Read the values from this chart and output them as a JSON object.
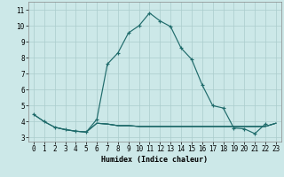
{
  "xlabel": "Humidex (Indice chaleur)",
  "xlim": [
    -0.5,
    23.5
  ],
  "ylim": [
    2.75,
    11.5
  ],
  "x_ticks": [
    0,
    1,
    2,
    3,
    4,
    5,
    6,
    7,
    8,
    9,
    10,
    11,
    12,
    13,
    14,
    15,
    16,
    17,
    18,
    19,
    20,
    21,
    22,
    23
  ],
  "y_ticks": [
    3,
    4,
    5,
    6,
    7,
    8,
    9,
    10,
    11
  ],
  "bg_color": "#cce8e8",
  "grid_color": "#aacccc",
  "line_color": "#1f6b6b",
  "curve1_x": [
    0,
    1,
    2,
    3,
    4,
    5,
    6,
    7,
    8,
    9,
    10,
    11,
    12,
    13,
    14,
    15,
    16,
    17,
    18,
    19,
    20,
    21,
    22
  ],
  "curve1_y": [
    4.45,
    4.0,
    3.65,
    3.5,
    3.4,
    3.35,
    4.15,
    7.6,
    8.3,
    9.55,
    10.0,
    10.8,
    10.3,
    9.95,
    8.6,
    7.9,
    6.3,
    5.0,
    4.85,
    3.6,
    3.55,
    3.25,
    3.85
  ],
  "curve2_x": [
    6,
    7,
    8,
    9,
    10,
    11,
    12,
    13,
    14,
    15,
    16,
    17,
    18,
    19,
    20,
    21,
    22,
    23
  ],
  "curve2_y": [
    3.9,
    3.85,
    3.75,
    3.75,
    3.7,
    3.7,
    3.7,
    3.7,
    3.7,
    3.7,
    3.7,
    3.7,
    3.7,
    3.7,
    3.7,
    3.7,
    3.7,
    3.9
  ],
  "curve3_x": [
    0,
    1,
    2,
    3,
    4,
    5,
    6,
    7,
    8,
    9,
    10,
    11,
    12,
    13,
    14,
    15,
    16,
    17,
    18,
    19,
    20,
    21,
    22,
    23
  ],
  "curve3_y": [
    4.45,
    4.0,
    3.65,
    3.5,
    3.4,
    3.35,
    3.9,
    3.85,
    3.75,
    3.75,
    3.7,
    3.7,
    3.7,
    3.7,
    3.7,
    3.7,
    3.7,
    3.7,
    3.7,
    3.7,
    3.7,
    3.7,
    3.7,
    3.9
  ],
  "curve4_x": [
    2,
    3,
    4,
    5,
    6,
    7,
    8,
    9,
    10,
    11,
    12,
    13,
    14,
    15,
    16,
    17,
    18,
    19,
    20,
    21,
    22,
    23
  ],
  "curve4_y": [
    3.65,
    3.5,
    3.4,
    3.35,
    3.9,
    3.85,
    3.75,
    3.75,
    3.7,
    3.7,
    3.7,
    3.7,
    3.7,
    3.7,
    3.7,
    3.7,
    3.7,
    3.7,
    3.7,
    3.7,
    3.7,
    3.9
  ]
}
